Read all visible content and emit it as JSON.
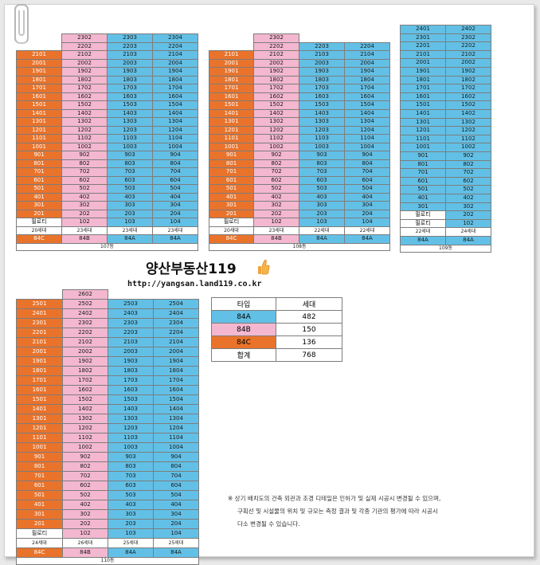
{
  "buildings": [
    {
      "id": "107",
      "floors": [
        [
          "",
          "2302",
          "2303",
          "2304"
        ],
        [
          "",
          "2202",
          "2203",
          "2204"
        ],
        [
          "2101",
          "2102",
          "2103",
          "2104"
        ],
        [
          "2001",
          "2002",
          "2003",
          "2004"
        ],
        [
          "1901",
          "1902",
          "1903",
          "1904"
        ],
        [
          "1801",
          "1802",
          "1803",
          "1804"
        ],
        [
          "1701",
          "1702",
          "1703",
          "1704"
        ],
        [
          "1601",
          "1602",
          "1603",
          "1604"
        ],
        [
          "1501",
          "1502",
          "1503",
          "1504"
        ],
        [
          "1401",
          "1402",
          "1403",
          "1404"
        ],
        [
          "1301",
          "1302",
          "1303",
          "1304"
        ],
        [
          "1201",
          "1202",
          "1203",
          "1204"
        ],
        [
          "1101",
          "1102",
          "1103",
          "1104"
        ],
        [
          "1001",
          "1002",
          "1003",
          "1004"
        ],
        [
          "901",
          "902",
          "903",
          "904"
        ],
        [
          "801",
          "802",
          "803",
          "804"
        ],
        [
          "701",
          "702",
          "703",
          "704"
        ],
        [
          "601",
          "602",
          "603",
          "604"
        ],
        [
          "501",
          "502",
          "503",
          "504"
        ],
        [
          "401",
          "402",
          "403",
          "404"
        ],
        [
          "301",
          "302",
          "303",
          "304"
        ],
        [
          "201",
          "202",
          "203",
          "204"
        ],
        [
          "필로티",
          "102",
          "103",
          "104"
        ]
      ],
      "counts": [
        "20세대",
        "23세대",
        "23세대",
        "23세대"
      ],
      "types": [
        "84C",
        "84B",
        "84A",
        "84A"
      ],
      "name": "107동"
    },
    {
      "id": "108",
      "floors": [
        [
          "",
          "2302",
          "",
          ""
        ],
        [
          "",
          "2202",
          "2203",
          "2204"
        ],
        [
          "2101",
          "2102",
          "2103",
          "2104"
        ],
        [
          "2001",
          "2002",
          "2003",
          "2004"
        ],
        [
          "1901",
          "1902",
          "1903",
          "1904"
        ],
        [
          "1801",
          "1802",
          "1803",
          "1804"
        ],
        [
          "1701",
          "1702",
          "1703",
          "1704"
        ],
        [
          "1601",
          "1602",
          "1603",
          "1604"
        ],
        [
          "1501",
          "1502",
          "1503",
          "1504"
        ],
        [
          "1401",
          "1402",
          "1403",
          "1404"
        ],
        [
          "1301",
          "1302",
          "1303",
          "1304"
        ],
        [
          "1201",
          "1202",
          "1203",
          "1204"
        ],
        [
          "1101",
          "1102",
          "1103",
          "1104"
        ],
        [
          "1001",
          "1002",
          "1003",
          "1004"
        ],
        [
          "901",
          "902",
          "903",
          "904"
        ],
        [
          "801",
          "802",
          "803",
          "804"
        ],
        [
          "701",
          "702",
          "703",
          "704"
        ],
        [
          "601",
          "602",
          "603",
          "604"
        ],
        [
          "501",
          "502",
          "503",
          "504"
        ],
        [
          "401",
          "402",
          "403",
          "404"
        ],
        [
          "301",
          "302",
          "303",
          "304"
        ],
        [
          "201",
          "202",
          "203",
          "204"
        ],
        [
          "필로티",
          "102",
          "103",
          "104"
        ]
      ],
      "counts": [
        "20세대",
        "23세대",
        "22세대",
        "22세대"
      ],
      "types": [
        "84C",
        "84B",
        "84A",
        "84A"
      ],
      "name": "108동"
    },
    {
      "id": "109",
      "floors": [
        [
          "2401",
          "2402"
        ],
        [
          "2301",
          "2302"
        ],
        [
          "2201",
          "2202"
        ],
        [
          "2101",
          "2102"
        ],
        [
          "2001",
          "2002"
        ],
        [
          "1901",
          "1902"
        ],
        [
          "1801",
          "1802"
        ],
        [
          "1701",
          "1702"
        ],
        [
          "1601",
          "1602"
        ],
        [
          "1501",
          "1502"
        ],
        [
          "1401",
          "1402"
        ],
        [
          "1301",
          "1302"
        ],
        [
          "1201",
          "1202"
        ],
        [
          "1101",
          "1102"
        ],
        [
          "1001",
          "1002"
        ],
        [
          "901",
          "902"
        ],
        [
          "801",
          "802"
        ],
        [
          "701",
          "702"
        ],
        [
          "601",
          "602"
        ],
        [
          "501",
          "502"
        ],
        [
          "401",
          "402"
        ],
        [
          "301",
          "302"
        ],
        [
          "필로티",
          "202"
        ],
        [
          "필로티",
          "102"
        ]
      ],
      "counts": [
        "22세대",
        "24세대"
      ],
      "types": [
        "84A",
        "84A"
      ],
      "name": "109동"
    },
    {
      "id": "110",
      "floors": [
        [
          "",
          "2602",
          "",
          ""
        ],
        [
          "2501",
          "2502",
          "2503",
          "2504"
        ],
        [
          "2401",
          "2402",
          "2403",
          "2404"
        ],
        [
          "2301",
          "2302",
          "2303",
          "2304"
        ],
        [
          "2201",
          "2202",
          "2203",
          "2204"
        ],
        [
          "2101",
          "2102",
          "2103",
          "2104"
        ],
        [
          "2001",
          "2002",
          "2003",
          "2004"
        ],
        [
          "1901",
          "1902",
          "1903",
          "1904"
        ],
        [
          "1801",
          "1802",
          "1803",
          "1804"
        ],
        [
          "1701",
          "1702",
          "1703",
          "1704"
        ],
        [
          "1601",
          "1602",
          "1603",
          "1604"
        ],
        [
          "1501",
          "1502",
          "1503",
          "1504"
        ],
        [
          "1401",
          "1402",
          "1403",
          "1404"
        ],
        [
          "1301",
          "1302",
          "1303",
          "1304"
        ],
        [
          "1201",
          "1202",
          "1203",
          "1204"
        ],
        [
          "1101",
          "1102",
          "1103",
          "1104"
        ],
        [
          "1001",
          "1002",
          "1003",
          "1004"
        ],
        [
          "901",
          "902",
          "903",
          "904"
        ],
        [
          "801",
          "802",
          "803",
          "804"
        ],
        [
          "701",
          "702",
          "703",
          "704"
        ],
        [
          "601",
          "602",
          "603",
          "604"
        ],
        [
          "501",
          "502",
          "503",
          "504"
        ],
        [
          "401",
          "402",
          "403",
          "404"
        ],
        [
          "301",
          "302",
          "303",
          "304"
        ],
        [
          "201",
          "202",
          "203",
          "204"
        ],
        [
          "필로티",
          "102",
          "103",
          "104"
        ]
      ],
      "counts": [
        "24세대",
        "26세대",
        "25세대",
        "25세대"
      ],
      "types": [
        "84C",
        "84B",
        "84A",
        "84A"
      ],
      "name": "110동"
    }
  ],
  "colors": {
    "type_84C": "#e9732b",
    "type_84B": "#f3b7cf",
    "type_84A": "#62c0e6",
    "pilotis": "#ffffff"
  },
  "logo": {
    "text": "양산부동산119",
    "icon": "thumbs-up-icon"
  },
  "url": "http://yangsan.land119.co.kr",
  "summary": {
    "header": [
      "타입",
      "세대"
    ],
    "rows": [
      [
        "84A",
        "482"
      ],
      [
        "84B",
        "150"
      ],
      [
        "84C",
        "136"
      ],
      [
        "합계",
        "768"
      ]
    ]
  },
  "note": {
    "line1": "※ 상기 배치도의 건축 외관과 조경 디테일은 인허가 및 실제 시공시 변경될 수 있으며,",
    "line2": "구획선 및 시설물의 위치 및 규모는 측정 결과 및 각종 기관의 평가에 따라 시공시",
    "line3": "다소 변경될 수 있습니다."
  }
}
